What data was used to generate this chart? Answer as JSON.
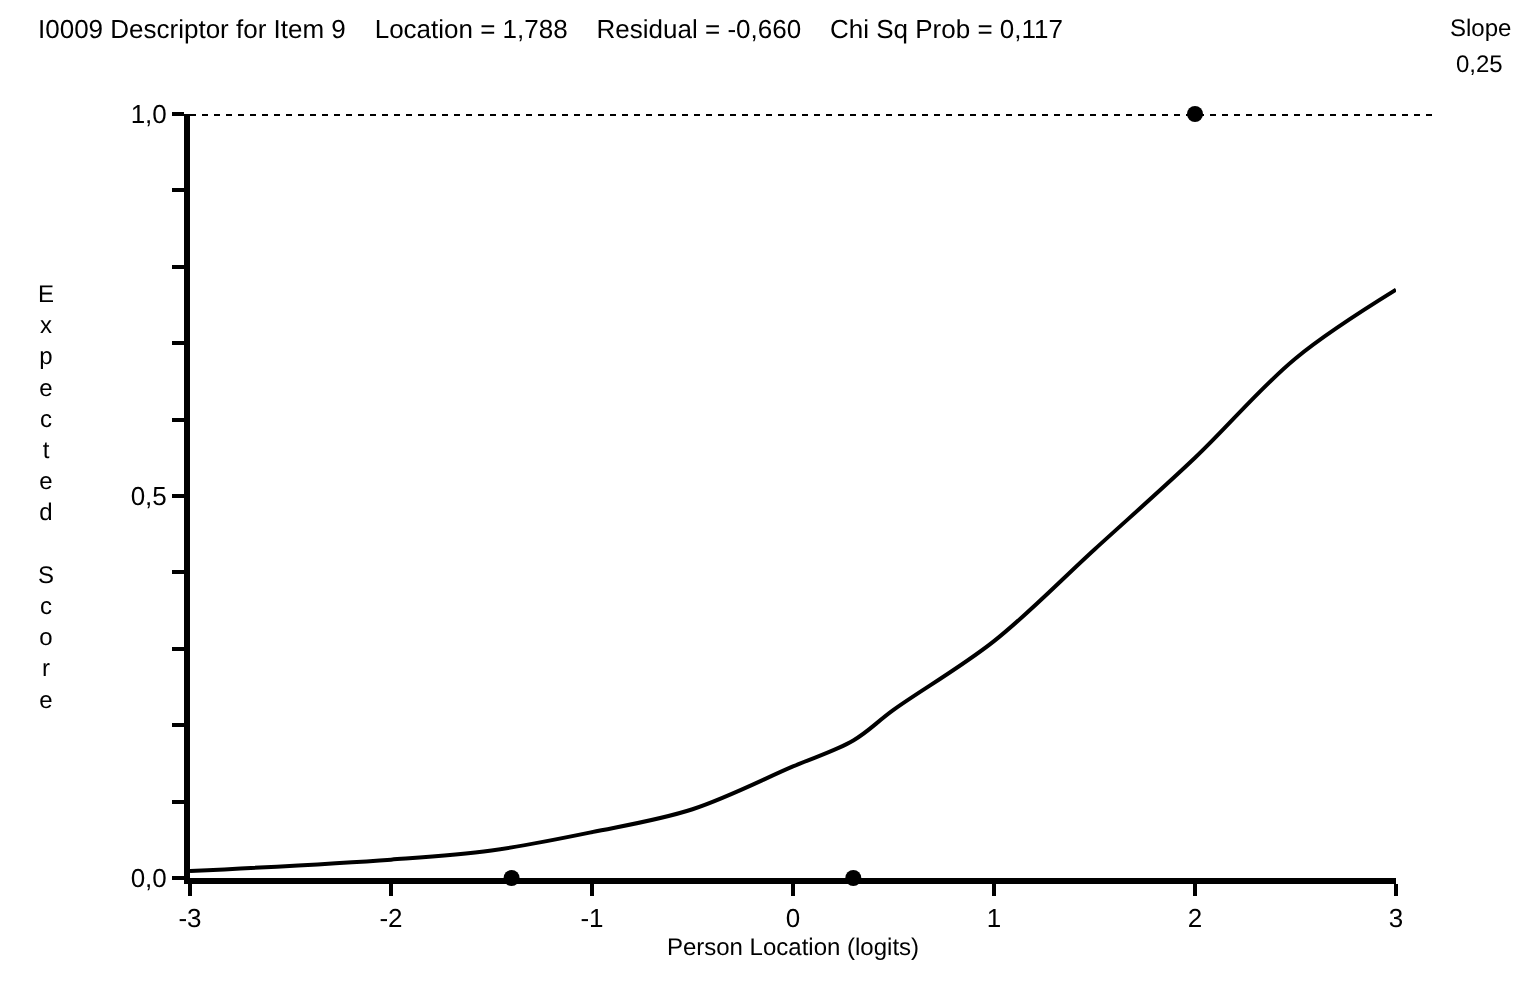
{
  "chart_data": {
    "type": "line",
    "title": "I0009 Descriptor for Item 9    Location = 1,788    Residual = -0,660    Chi Sq Prob = 0,117",
    "xlabel": "Person Location (logits)",
    "ylabel": "Expected Score",
    "annotations": [
      "Slope",
      "0,25"
    ],
    "series": [
      {
        "color": "#000000",
        "x": [
          -3,
          -2,
          -1.5,
          -1,
          -0.5,
          0,
          0.3,
          0.5,
          1,
          1.5,
          2,
          2.5,
          3
        ],
        "values": [
          0.009,
          0.024,
          0.036,
          0.06,
          0.09,
          0.146,
          0.18,
          0.22,
          0.31,
          0.43,
          0.55,
          0.68,
          0.77
        ]
      },
      {
        "type": "scatter",
        "color": "#000000",
        "marker": "circle",
        "x": [
          -1.4,
          0.3,
          2
        ],
        "values": [
          0,
          0,
          1
        ]
      }
    ],
    "ref_lines": [
      {
        "axis": "y",
        "value": 1,
        "line_style": "dotted",
        "color": "#000000"
      }
    ],
    "xlim": [
      -3,
      3
    ],
    "xticks": [
      -3,
      -2,
      -1,
      0,
      1,
      2,
      3
    ],
    "ylim": [
      0,
      1
    ],
    "yticks": [
      {
        "value": 0,
        "label": "0,0"
      },
      {
        "value": 0.1,
        "label": null
      },
      {
        "value": 0.2,
        "label": null
      },
      {
        "value": 0.3,
        "label": null
      },
      {
        "value": 0.4,
        "label": null
      },
      {
        "value": 0.5,
        "label": "0,5"
      },
      {
        "value": 0.6,
        "label": null
      },
      {
        "value": 0.7,
        "label": null
      },
      {
        "value": 0.8,
        "label": null
      },
      {
        "value": 0.9,
        "label": null
      },
      {
        "value": 1,
        "label": "1,0"
      }
    ],
    "grid": false
  }
}
